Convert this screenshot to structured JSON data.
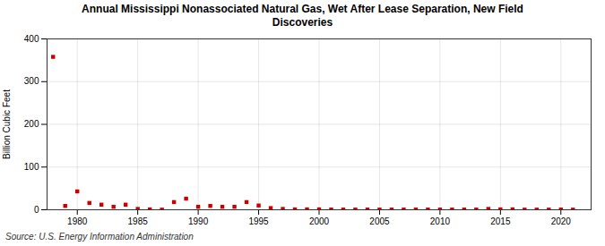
{
  "chart_data": {
    "type": "scatter",
    "title": "Annual Mississippi Nonassociated Natural Gas, Wet After Lease Separation, New Field\nDiscoveries",
    "ylabel": "Billion Cubic Feet",
    "source": "Source: U.S. Energy Information Administration",
    "x": [
      1978,
      1979,
      1980,
      1981,
      1982,
      1983,
      1984,
      1985,
      1986,
      1987,
      1988,
      1989,
      1990,
      1991,
      1992,
      1993,
      1994,
      1995,
      1996,
      1997,
      1998,
      1999,
      2000,
      2001,
      2002,
      2003,
      2004,
      2005,
      2006,
      2007,
      2008,
      2009,
      2010,
      2011,
      2012,
      2013,
      2014,
      2015,
      2016,
      2017,
      2018,
      2019,
      2020,
      2021
    ],
    "values": [
      358,
      9,
      43,
      16,
      12,
      7,
      12,
      2,
      1,
      0.3,
      18,
      26,
      7,
      9,
      7,
      7,
      18,
      10,
      4,
      2,
      1,
      1,
      1,
      0.5,
      0.5,
      0.5,
      0.5,
      0.5,
      0.5,
      0.5,
      0.5,
      0.5,
      0.5,
      0.5,
      0.5,
      0.5,
      2,
      1,
      1,
      0.3,
      0.3,
      0.3,
      0.5,
      0.3
    ],
    "color": "#cc0000",
    "marker": "square",
    "xlim": [
      1977.5,
      2022.5
    ],
    "ylim": [
      0,
      400
    ],
    "xticks": [
      1980,
      1985,
      1990,
      1995,
      2000,
      2005,
      2010,
      2015,
      2020
    ],
    "yticks": [
      0,
      100,
      200,
      300,
      400
    ],
    "grid": true
  }
}
